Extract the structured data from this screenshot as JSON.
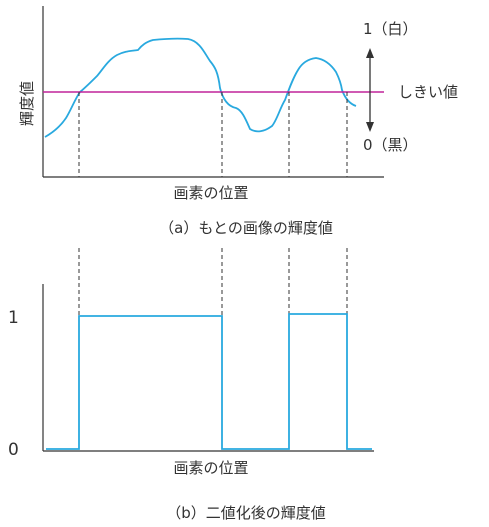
{
  "panel_a": {
    "ylabel": "輝度値",
    "xlabel": "画素の位置",
    "caption": "（a）もとの画像の輝度値",
    "white_label": "1（白）",
    "black_label": "0（黒）",
    "threshold_label": "しきい値"
  },
  "panel_b": {
    "xlabel": "画素の位置",
    "caption": "（b）二値化後の輝度値",
    "tick_one": "1",
    "tick_zero": "0"
  },
  "colors": {
    "signal": "#29a9df",
    "threshold": "#c0239a",
    "axis": "#333333"
  },
  "crossings": [
    "up",
    "down",
    "up",
    "down"
  ]
}
